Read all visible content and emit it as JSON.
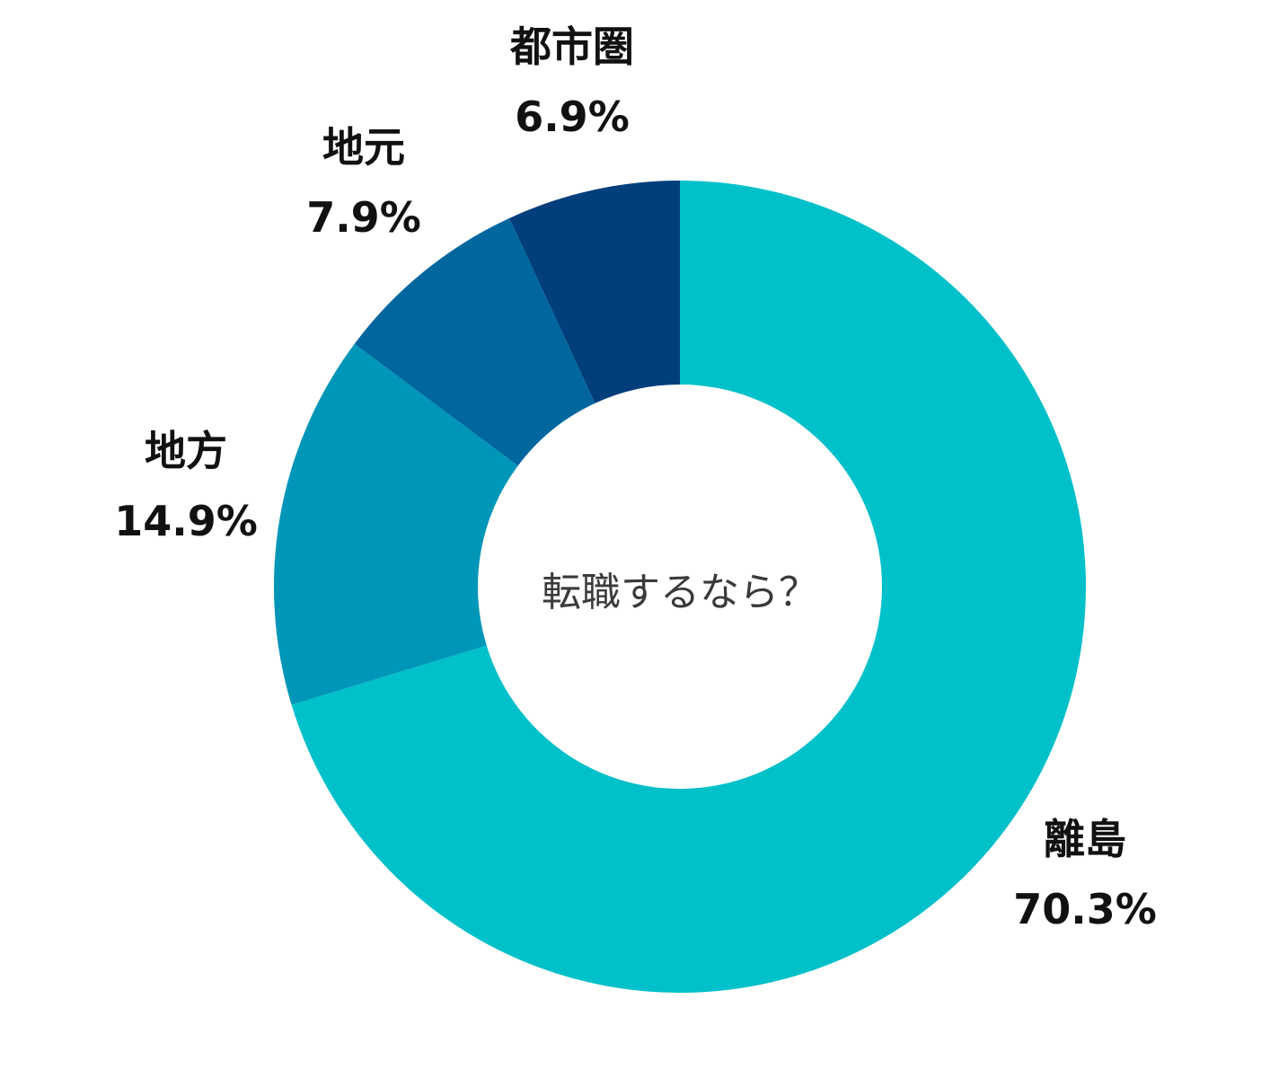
{
  "chart_data": {
    "type": "pie",
    "style": "donut",
    "center_label": "転職するなら？",
    "slices": [
      {
        "label": "離島",
        "value": 70.3,
        "value_text": "70.3%",
        "color": "#00C0CA"
      },
      {
        "label": "地方",
        "value": 14.9,
        "value_text": "14.9%",
        "color": "#0096B8"
      },
      {
        "label": "地元",
        "value": 7.9,
        "value_text": "7.9%",
        "color": "#00679E"
      },
      {
        "label": "都市圏",
        "value": 6.9,
        "value_text": "6.9%",
        "color": "#003E7C"
      }
    ],
    "start_angle": "12 o'clock",
    "direction": "clockwise",
    "legend": "none (direct labels)"
  }
}
